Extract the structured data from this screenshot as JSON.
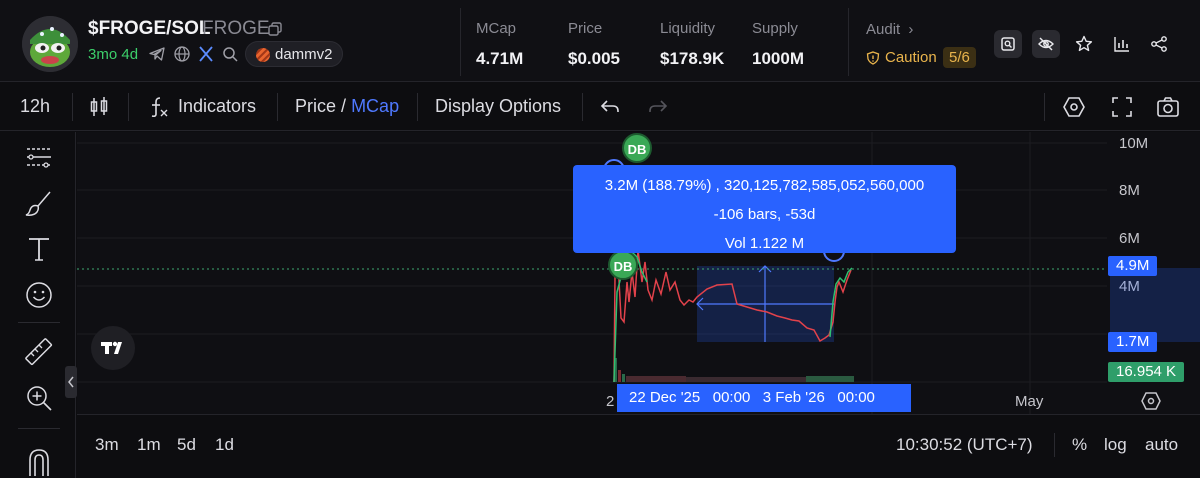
{
  "header": {
    "token_name": "$FROGE/SOL",
    "token_symbol": "FROGE",
    "age": "3mo 4d",
    "pool": "dammv2",
    "stats": [
      {
        "label": "MCap",
        "value": "4.71M"
      },
      {
        "label": "Price",
        "value": "$0.005"
      },
      {
        "label": "Liquidity",
        "value": "$178.9K"
      },
      {
        "label": "Supply",
        "value": "1000M"
      }
    ],
    "audit_label": "Audit",
    "audit_status": "Caution",
    "audit_score": "5/6"
  },
  "toolbar": {
    "interval": "12h",
    "indicators": "Indicators",
    "price_label": "Price",
    "separator": "/",
    "mcap_label": "MCap",
    "display_options": "Display Options"
  },
  "chart": {
    "y_axis": [
      "10M",
      "8M",
      "6M",
      "4M"
    ],
    "price_tag_current": "4.9M",
    "price_tag_low": "1.7M",
    "volume_tag": "16.954 K",
    "tooltip": {
      "line1": "3.2M (188.79%) , 320,125,782,585,052,560,000",
      "line2": "-106 bars, -53d",
      "line3": "Vol 1.122 M"
    },
    "badge": "DB",
    "date_range": "22 Dec '25   00:00   3 Feb '26   00:00",
    "time_axis_left": "2",
    "time_axis_may": "May",
    "colors": {
      "up": "#2fbf71",
      "down": "#e2424b",
      "accent": "#2962ff"
    }
  },
  "bottombar": {
    "ranges": [
      "3m",
      "1m",
      "5d",
      "1d"
    ],
    "clock": "10:30:52 (UTC+7)",
    "percent": "%",
    "log": "log",
    "auto": "auto"
  }
}
